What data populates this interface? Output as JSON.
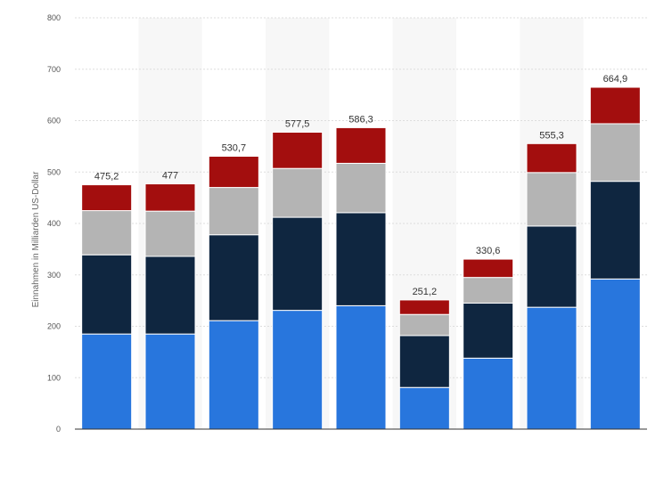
{
  "chart_data": {
    "type": "bar",
    "stacked": true,
    "title": "",
    "xlabel": "",
    "ylabel": "Einnahmen in Milliarden US-Dollar",
    "ylim": [
      0,
      800
    ],
    "yticks": [
      0,
      100,
      200,
      300,
      400,
      500,
      600,
      700,
      800
    ],
    "categories": [
      "",
      "",
      "",
      "",
      "",
      "",
      "",
      "",
      ""
    ],
    "series": [
      {
        "color": "#2876dd",
        "values": [
          185,
          185,
          211,
          231,
          240,
          81,
          138,
          237,
          292
        ]
      },
      {
        "color": "#0f2640",
        "values": [
          154,
          151,
          167,
          181,
          181,
          101,
          107,
          158,
          190
        ]
      },
      {
        "color": "#b4b4b4",
        "values": [
          86,
          88,
          92,
          95,
          96,
          41,
          50,
          104,
          112
        ]
      },
      {
        "color": "#a30e0e",
        "values": [
          50.2,
          53,
          60.7,
          70.5,
          69.3,
          28.2,
          35.6,
          56.3,
          70.9
        ]
      }
    ],
    "totals": [
      "475,2",
      "477",
      "530,7",
      "577,5",
      "586,3",
      "251,2",
      "330,6",
      "555,3",
      "664,9"
    ],
    "grid": true,
    "legend": "none",
    "colors": {
      "grid": "#dddddd",
      "band": "#f7f7f7",
      "axis": "#333333"
    }
  }
}
